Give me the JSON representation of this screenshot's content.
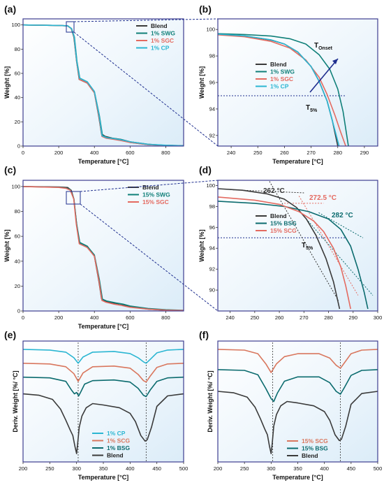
{
  "figure": {
    "panel_labels": [
      "(a)",
      "(b)",
      "(c)",
      "(d)",
      "(e)",
      "(f)"
    ]
  },
  "colors": {
    "blend": "#3a3a3a",
    "swg": "#0f7f78",
    "sgc": "#e46a60",
    "cp": "#2bb6d2",
    "bsg": "#0b6b6e",
    "scg": "#d9775e",
    "bg_light": "#eaf4fb",
    "frame": "#3d3d8f",
    "guide": "#1f2f8f"
  },
  "chart_data": [
    {
      "id": "a",
      "type": "line",
      "xlabel": "Temperature [°C]",
      "ylabel": "Weight [%]",
      "xlim": [
        0,
        900
      ],
      "ylim": [
        0,
        105
      ],
      "xticks": [
        0,
        200,
        400,
        600,
        800
      ],
      "yticks": [
        0,
        20,
        40,
        60,
        80,
        100
      ],
      "grid": false,
      "legend_position": "top-right",
      "legend": [
        "Blend",
        "1% SWG",
        "1% SGC",
        "1% CP"
      ],
      "series": [
        {
          "name": "Blend",
          "color": "#3a3a3a",
          "x": [
            0,
            200,
            250,
            270,
            285,
            300,
            315,
            360,
            400,
            425,
            440,
            460,
            500,
            550,
            600,
            700,
            800,
            900
          ],
          "y": [
            100,
            99.6,
            99.2,
            97,
            90,
            70,
            55,
            52,
            44,
            24,
            10,
            8,
            6.5,
            5.5,
            3.5,
            1.5,
            0.6,
            0.3
          ]
        },
        {
          "name": "1% SWG",
          "color": "#0f7f78",
          "x": [
            0,
            200,
            250,
            272,
            288,
            302,
            318,
            360,
            400,
            428,
            445,
            470,
            520,
            560,
            600,
            700,
            800,
            900
          ],
          "y": [
            100,
            99.6,
            99.3,
            97,
            90,
            70,
            56,
            53,
            45,
            25,
            9,
            7,
            6,
            5,
            3,
            1.2,
            0.5,
            0.3
          ]
        },
        {
          "name": "1% SGC",
          "color": "#e46a60",
          "x": [
            0,
            200,
            250,
            270,
            286,
            300,
            316,
            360,
            400,
            426,
            442,
            465,
            510,
            550,
            600,
            700,
            800,
            900
          ],
          "y": [
            100,
            99.6,
            99.2,
            97,
            90,
            70,
            55,
            52,
            44,
            24,
            8,
            6.5,
            5.5,
            4.5,
            3,
            1.2,
            0.5,
            0.3
          ]
        },
        {
          "name": "1% CP",
          "color": "#2bb6d2",
          "x": [
            0,
            200,
            250,
            271,
            287,
            301,
            317,
            360,
            400,
            427,
            443,
            468,
            515,
            555,
            600,
            700,
            800,
            900
          ],
          "y": [
            100,
            99.6,
            99.3,
            97,
            90,
            70,
            56,
            53,
            45,
            25,
            8.5,
            7,
            6,
            5,
            3.5,
            1.5,
            0.7,
            0.3
          ]
        }
      ]
    },
    {
      "id": "b",
      "type": "line",
      "xlabel": "Temperature [°C]",
      "ylabel": "Weight [%]",
      "xlim": [
        235,
        295
      ],
      "ylim": [
        91.2,
        100.8
      ],
      "xticks": [
        240,
        250,
        260,
        270,
        280,
        290
      ],
      "yticks": [
        92,
        94,
        96,
        98,
        100
      ],
      "grid": false,
      "legend_position": "center-left",
      "legend": [
        "Blend",
        "1% SWG",
        "1% SGC",
        "1% CP"
      ],
      "annotations": {
        "onset": "T",
        "onset_sub": "Onset",
        "t5": "T",
        "t5_sub": "5%"
      },
      "t5_level": 95,
      "series": [
        {
          "name": "Blend",
          "color": "#3a3a3a",
          "x": [
            235,
            245,
            255,
            260,
            265,
            270,
            273,
            276,
            278,
            280
          ],
          "y": [
            99.62,
            99.5,
            99.2,
            98.9,
            98.3,
            97.2,
            96.1,
            94.6,
            93.1,
            91.2
          ]
        },
        {
          "name": "1% SWG",
          "color": "#0f7f78",
          "x": [
            235,
            245,
            255,
            262,
            268,
            273,
            277,
            280,
            282,
            284
          ],
          "y": [
            99.68,
            99.62,
            99.5,
            99.3,
            98.9,
            98.1,
            97.0,
            95.5,
            93.8,
            91.2
          ]
        },
        {
          "name": "1% SGC",
          "color": "#e46a60",
          "x": [
            235,
            245,
            255,
            262,
            268,
            273,
            276,
            279,
            281,
            283
          ],
          "y": [
            99.6,
            99.45,
            99.1,
            98.6,
            97.7,
            96.4,
            95.1,
            93.5,
            92.3,
            91.2
          ]
        },
        {
          "name": "1% CP",
          "color": "#2bb6d2",
          "x": [
            235,
            245,
            255,
            260,
            265,
            270,
            273,
            276,
            278,
            280.5
          ],
          "y": [
            99.65,
            99.52,
            99.22,
            98.9,
            98.3,
            97.2,
            96.1,
            94.6,
            93.1,
            91.2
          ]
        }
      ]
    },
    {
      "id": "c",
      "type": "line",
      "xlabel": "Temperature [°C]",
      "ylabel": "Weight [%]",
      "xlim": [
        0,
        900
      ],
      "ylim": [
        0,
        105
      ],
      "xticks": [
        0,
        200,
        400,
        600,
        800
      ],
      "yticks": [
        0,
        20,
        40,
        60,
        80,
        100
      ],
      "grid": false,
      "legend_position": "top-right",
      "legend": [
        "Blend",
        "15% SWG",
        "15% SGC"
      ],
      "series": [
        {
          "name": "Blend",
          "color": "#3a3a3a",
          "x": [
            0,
            200,
            250,
            270,
            285,
            300,
            315,
            360,
            400,
            425,
            440,
            460,
            500,
            550,
            600,
            700,
            800,
            900
          ],
          "y": [
            100,
            99.6,
            99.2,
            97,
            90,
            70,
            55,
            52,
            44,
            24,
            10,
            8,
            6.5,
            5.5,
            3.5,
            1.5,
            0.6,
            0.3
          ]
        },
        {
          "name": "15% SWG",
          "color": "#0f7f78",
          "x": [
            0,
            200,
            240,
            265,
            285,
            300,
            318,
            360,
            400,
            428,
            445,
            470,
            520,
            560,
            600,
            700,
            800,
            900
          ],
          "y": [
            100,
            99.4,
            98.8,
            97.5,
            90,
            70,
            55,
            52,
            45,
            25,
            9.5,
            8,
            6.5,
            5.5,
            4,
            2,
            1,
            0.5
          ]
        },
        {
          "name": "15% SGC",
          "color": "#e46a60",
          "x": [
            0,
            200,
            240,
            265,
            284,
            298,
            315,
            360,
            400,
            426,
            442,
            465,
            510,
            550,
            600,
            700,
            800,
            900
          ],
          "y": [
            100,
            99.3,
            98.6,
            97,
            90,
            70,
            54,
            51,
            44,
            24,
            8.5,
            7,
            5.5,
            4.5,
            3,
            1.5,
            0.7,
            0.4
          ]
        }
      ]
    },
    {
      "id": "d",
      "type": "line",
      "xlabel": "",
      "ylabel": "Weight [%]",
      "xlim": [
        235,
        300
      ],
      "ylim": [
        88,
        100.5
      ],
      "xticks": [
        240,
        250,
        260,
        270,
        280,
        290,
        300
      ],
      "yticks": [
        90,
        92,
        94,
        96,
        98,
        100
      ],
      "grid": false,
      "legend_position": "center-left",
      "legend": [
        "Blend",
        "15% BSG",
        "15% SCG"
      ],
      "annotations": {
        "blend_onset": "262 °C",
        "scg_onset": "272.5 °C",
        "bsg_onset": "282 °C",
        "t5": "T",
        "t5_sub": "5%"
      },
      "t5_level": 95,
      "series": [
        {
          "name": "Blend",
          "color": "#3a3a3a",
          "x": [
            235,
            245,
            255,
            262,
            267,
            271,
            275,
            279,
            282,
            284.5
          ],
          "y": [
            99.7,
            99.55,
            99.2,
            98.7,
            97.9,
            96.8,
            95.2,
            93.0,
            90.8,
            88.2
          ]
        },
        {
          "name": "15% BSG",
          "color": "#0b6b6e",
          "x": [
            235,
            250,
            262,
            272,
            280,
            285,
            289,
            292,
            294.5,
            296
          ],
          "y": [
            98.5,
            98.3,
            98.0,
            97.5,
            96.8,
            95.8,
            94.2,
            92.0,
            89.8,
            88.2
          ]
        },
        {
          "name": "15% SCG",
          "color": "#e46a60",
          "x": [
            235,
            250,
            260,
            268,
            274,
            278,
            282,
            285,
            287,
            289
          ],
          "y": [
            98.9,
            98.6,
            98.2,
            97.5,
            96.6,
            95.6,
            94.0,
            92.2,
            90.4,
            88.2
          ]
        }
      ]
    },
    {
      "id": "e",
      "type": "line",
      "xlabel": "Temperature [°C]",
      "ylabel": "Deriv. Weight [%/ °C]",
      "xlim": [
        200,
        500
      ],
      "xticks": [
        200,
        250,
        300,
        350,
        400,
        450,
        500
      ],
      "yticks": [],
      "grid": false,
      "legend_position": "bottom-left",
      "legend": [
        "1% CP",
        "1% SCG",
        "1% BSG",
        "Blend"
      ],
      "reference_lines_x": [
        303,
        430
      ],
      "series": [
        {
          "name": "1% CP",
          "color": "#2bb6d2",
          "offset": 0.0,
          "x": [
            200,
            250,
            280,
            295,
            303,
            312,
            330,
            370,
            400,
            415,
            425,
            430,
            438,
            450,
            470,
            500
          ],
          "y": [
            0,
            -0.05,
            -0.2,
            -0.6,
            -1.0,
            -0.55,
            -0.2,
            -0.15,
            -0.3,
            -0.6,
            -0.9,
            -1.0,
            -0.7,
            -0.25,
            -0.05,
            0
          ]
        },
        {
          "name": "1% SCG",
          "color": "#d9775e",
          "offset": 1.0,
          "x": [
            200,
            250,
            280,
            295,
            303,
            312,
            330,
            370,
            400,
            415,
            425,
            430,
            438,
            450,
            470,
            500
          ],
          "y": [
            0,
            -0.05,
            -0.25,
            -0.75,
            -1.3,
            -0.7,
            -0.25,
            -0.2,
            -0.35,
            -0.8,
            -1.25,
            -1.35,
            -0.9,
            -0.3,
            -0.05,
            0
          ]
        },
        {
          "name": "1% BSG",
          "color": "#0b6b6e",
          "offset": 2.0,
          "x": [
            200,
            250,
            280,
            290,
            296,
            300,
            304,
            308,
            315,
            330,
            370,
            400,
            415,
            425,
            430,
            438,
            450,
            470,
            500
          ],
          "y": [
            0,
            -0.05,
            -0.3,
            -0.9,
            -1.2,
            -1.1,
            -1.35,
            -1.05,
            -0.5,
            -0.25,
            -0.2,
            -0.35,
            -0.8,
            -1.3,
            -1.4,
            -0.9,
            -0.3,
            -0.05,
            0
          ]
        },
        {
          "name": "Blend",
          "color": "#3a3a3a",
          "offset": 3.2,
          "x": [
            200,
            230,
            255,
            270,
            280,
            288,
            293,
            297,
            300,
            302,
            305,
            310,
            318,
            330,
            350,
            380,
            400,
            410,
            420,
            428,
            432,
            440,
            450,
            470,
            500
          ],
          "y": [
            0,
            -0.1,
            -0.4,
            -1.1,
            -1.9,
            -2.6,
            -3.0,
            -3.8,
            -4.3,
            -3.6,
            -2.4,
            -1.6,
            -1.0,
            -0.7,
            -0.8,
            -1.0,
            -1.4,
            -2.0,
            -3.0,
            -3.4,
            -3.3,
            -2.4,
            -0.9,
            -0.15,
            0
          ]
        }
      ]
    },
    {
      "id": "f",
      "type": "line",
      "xlabel": "Temperature [°C]",
      "ylabel": "Deriv. Weight [%/ °C]",
      "xlim": [
        200,
        500
      ],
      "xticks": [
        200,
        250,
        300,
        350,
        400,
        450,
        500
      ],
      "yticks": [],
      "grid": false,
      "legend_position": "bottom-left",
      "legend": [
        "15% SCG",
        "15% BSG",
        "Blend"
      ],
      "reference_lines_x": [
        303,
        430
      ],
      "series": [
        {
          "name": "15% SCG",
          "color": "#d9775e",
          "offset": 0.0,
          "x": [
            200,
            250,
            275,
            290,
            300,
            310,
            325,
            350,
            390,
            410,
            422,
            430,
            438,
            450,
            470,
            500
          ],
          "y": [
            0,
            -0.05,
            -0.3,
            -1.0,
            -1.6,
            -1.0,
            -0.5,
            -0.3,
            -0.3,
            -0.6,
            -1.1,
            -1.3,
            -0.9,
            -0.3,
            -0.05,
            0
          ]
        },
        {
          "name": "15% BSG",
          "color": "#0b6b6e",
          "offset": 1.4,
          "x": [
            200,
            250,
            275,
            290,
            300,
            305,
            312,
            325,
            350,
            390,
            410,
            422,
            430,
            438,
            450,
            470,
            500
          ],
          "y": [
            0,
            -0.05,
            -0.35,
            -1.3,
            -2.0,
            -2.2,
            -1.6,
            -0.8,
            -0.5,
            -0.5,
            -0.9,
            -1.5,
            -1.7,
            -1.2,
            -0.4,
            -0.05,
            0
          ]
        },
        {
          "name": "Blend",
          "color": "#3a3a3a",
          "offset": 2.9,
          "x": [
            200,
            230,
            255,
            270,
            280,
            288,
            293,
            297,
            300,
            302,
            305,
            310,
            318,
            330,
            350,
            380,
            400,
            410,
            420,
            428,
            432,
            440,
            450,
            470,
            500
          ],
          "y": [
            0,
            -0.1,
            -0.4,
            -1.1,
            -1.9,
            -2.6,
            -3.0,
            -3.8,
            -4.3,
            -3.6,
            -2.4,
            -1.6,
            -1.0,
            -0.7,
            -0.8,
            -1.0,
            -1.4,
            -2.0,
            -3.0,
            -3.4,
            -3.3,
            -2.4,
            -0.9,
            -0.15,
            0
          ]
        }
      ]
    }
  ]
}
